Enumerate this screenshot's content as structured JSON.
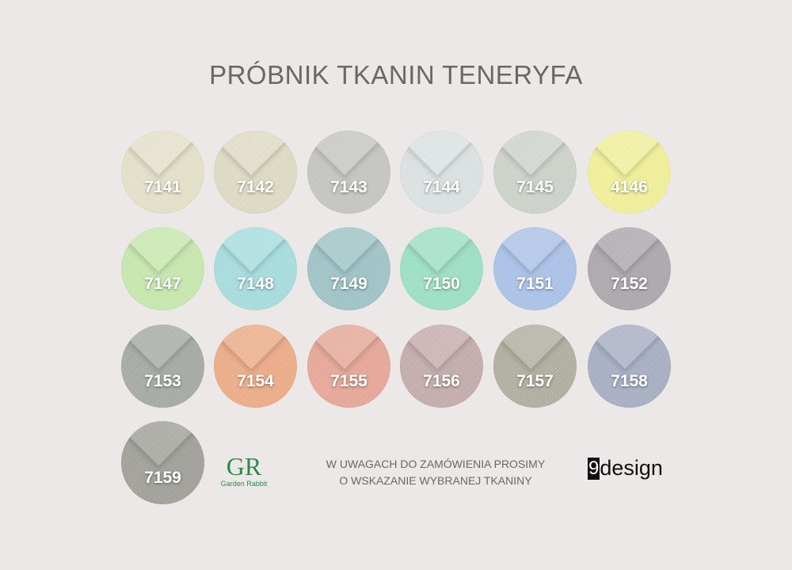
{
  "title": "PRÓBNIK TKANIN TENERYFA",
  "swatches": [
    {
      "code": "7141",
      "color": "#e6e3cb"
    },
    {
      "code": "7142",
      "color": "#e0ddc5"
    },
    {
      "code": "7143",
      "color": "#c7c7c3"
    },
    {
      "code": "7144",
      "color": "#dde4e4"
    },
    {
      "code": "7145",
      "color": "#cfd5cd"
    },
    {
      "code": "4146",
      "color": "#f3f29c"
    },
    {
      "code": "7147",
      "color": "#c8eab0"
    },
    {
      "code": "7148",
      "color": "#a9dfe0"
    },
    {
      "code": "7149",
      "color": "#a1c6c8"
    },
    {
      "code": "7150",
      "color": "#9fe2c8"
    },
    {
      "code": "7151",
      "color": "#adc4ea"
    },
    {
      "code": "7152",
      "color": "#aeaab0"
    },
    {
      "code": "7153",
      "color": "#a8aca7"
    },
    {
      "code": "7154",
      "color": "#eeae8a"
    },
    {
      "code": "7155",
      "color": "#e8a99a"
    },
    {
      "code": "7156",
      "color": "#c7aeae"
    },
    {
      "code": "7157",
      "color": "#b2b1a2"
    },
    {
      "code": "7158",
      "color": "#a9b1c6"
    },
    {
      "code": "7159",
      "color": "#a3a39c"
    }
  ],
  "note": {
    "line1": "W UWAGACH DO ZAMÓWIENIA PROSIMY",
    "line2": "O WSKAZANIE WYBRANEJ TKANINY"
  },
  "logos": {
    "garden_rabbit": {
      "mark": "GR",
      "text": "Garden Rabbit",
      "color": "#2e8a4c"
    },
    "nine_design": {
      "nine": "9",
      "text": "design"
    }
  }
}
